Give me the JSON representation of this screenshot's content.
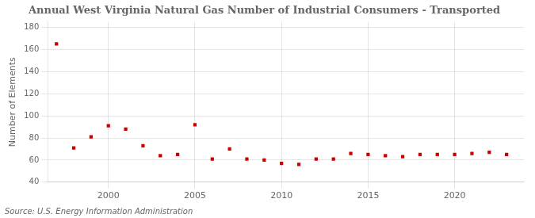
{
  "chart_data": {
    "type": "scatter",
    "title": "Annual West Virginia Natural Gas Number of Industrial Consumers - Transported",
    "ylabel": "Number of Elements",
    "annotations": [
      "Source: U.S. Energy Information Administration"
    ],
    "x": [
      1997,
      1998,
      1999,
      2000,
      2001,
      2002,
      2003,
      2004,
      2005,
      2006,
      2007,
      2008,
      2009,
      2010,
      2011,
      2012,
      2013,
      2014,
      2015,
      2016,
      2017,
      2018,
      2019,
      2020,
      2021,
      2022,
      2023
    ],
    "values": [
      165,
      71,
      81,
      91,
      88,
      73,
      64,
      65,
      92,
      61,
      70,
      61,
      60,
      57,
      56,
      61,
      61,
      66,
      65,
      64,
      63,
      65,
      65,
      65,
      66,
      67,
      65
    ],
    "color": "#cc0000",
    "marker": "square",
    "xlim": [
      1996.5,
      2024
    ],
    "xticks": [
      2000,
      2005,
      2010,
      2015,
      2020
    ],
    "ylim": [
      40,
      185
    ],
    "yticks": [
      40,
      60,
      80,
      100,
      120,
      140,
      160,
      180
    ],
    "grid": true
  }
}
